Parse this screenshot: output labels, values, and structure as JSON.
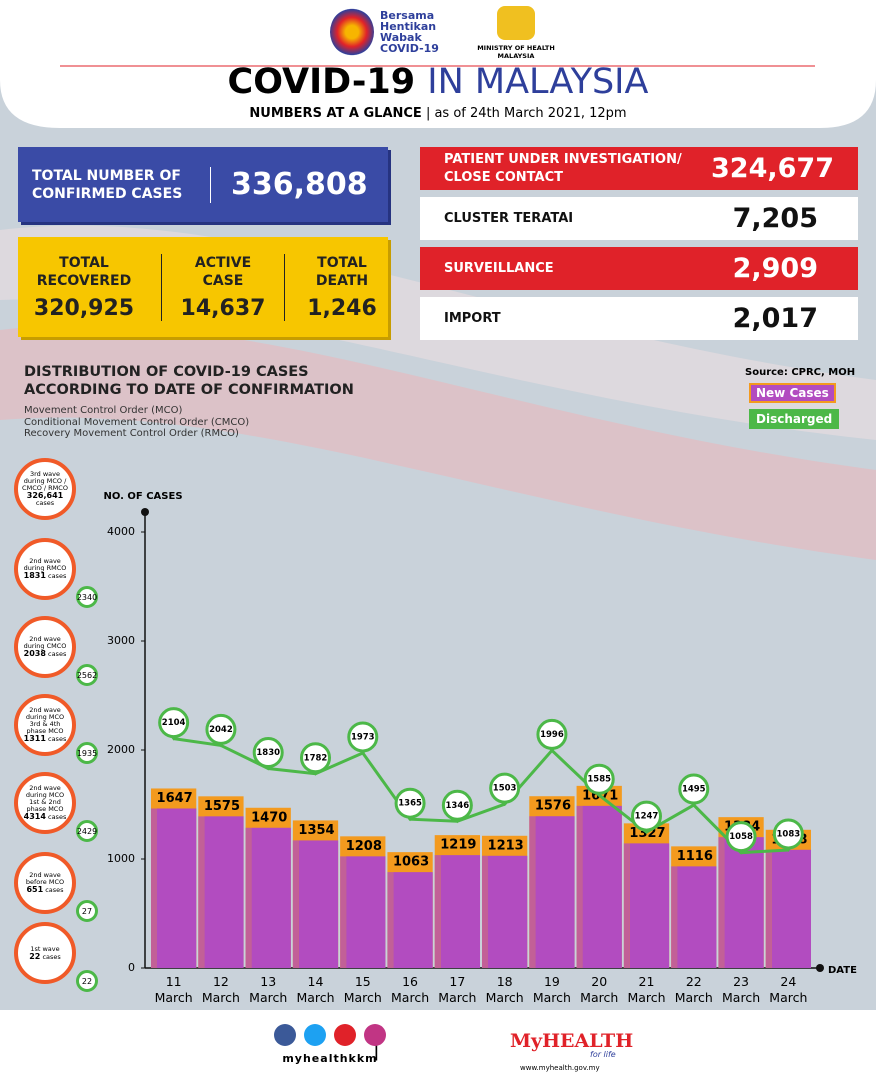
{
  "header": {
    "campaign": [
      "Bersama",
      "Hentikan",
      "Wabak",
      "COVID-19"
    ],
    "ministry": "MINISTRY OF HEALTH MALAYSIA",
    "title_main": "COVID-19",
    "title_rest": "IN MALAYSIA",
    "subtitle": "NUMBERS AT A GLANCE",
    "date": "as of 24th March 2021, 12pm"
  },
  "stats": {
    "confirmed": {
      "label": "TOTAL NUMBER OF CONFIRMED CASES",
      "value": "336,808"
    },
    "recovered": {
      "label": "TOTAL RECOVERED",
      "value": "320,925"
    },
    "active": {
      "label": "ACTIVE CASE",
      "value": "14,637"
    },
    "death": {
      "label": "TOTAL DEATH",
      "value": "1,246"
    },
    "pui": {
      "label": "PATIENT UNDER INVESTIGATION/ CLOSE CONTACT",
      "value": "324,677"
    },
    "cluster": {
      "label": "CLUSTER TERATAI",
      "value": "7,205"
    },
    "surveillance": {
      "label": "SURVEILLANCE",
      "value": "2,909"
    },
    "import": {
      "label": "IMPORT",
      "value": "2,017"
    }
  },
  "chart_data": {
    "type": "bar",
    "title": "DISTRIBUTION OF COVID-19 CASES ACCORDING TO DATE OF CONFIRMATION",
    "notes": [
      "Movement Control Order (MCO)",
      "Conditional Movement Control Order (CMCO)",
      "Recovery Movement Control Order (RMCO)"
    ],
    "source": "Source: CPRC, MOH",
    "y_label": "NO. OF CASES",
    "x_label": "DATE",
    "categories": [
      "11 March",
      "12 March",
      "13 March",
      "14 March",
      "15 March",
      "16 March",
      "17 March",
      "18 March",
      "19 March",
      "20 March",
      "21 March",
      "22 March",
      "23 March",
      "24 March"
    ],
    "series": [
      {
        "name": "New Cases",
        "type": "bar",
        "color": "#f39a1e",
        "inner_color": "#b24cc0",
        "values": [
          1647,
          1575,
          1470,
          1354,
          1208,
          1063,
          1219,
          1213,
          1576,
          1671,
          1327,
          1116,
          1384,
          1268
        ]
      },
      {
        "name": "Discharged",
        "type": "line",
        "color": "#4cb848",
        "values": [
          2104,
          2042,
          1830,
          1782,
          1973,
          1365,
          1346,
          1503,
          1996,
          1585,
          1247,
          1495,
          1058,
          1083
        ]
      }
    ],
    "ylim": [
      0,
      4000
    ],
    "yticks": [
      0,
      1000,
      2000,
      3000,
      4000
    ]
  },
  "waves": [
    {
      "label": "3rd wave during MCO / CMCO / RMCO",
      "cases": "326,641",
      "unit": "cases"
    },
    {
      "label": "2nd wave during RMCO",
      "cases": "1831",
      "unit": "cases",
      "discharged": "2340"
    },
    {
      "label": "2nd wave during CMCO",
      "cases": "2038",
      "unit": "cases",
      "discharged": "2562"
    },
    {
      "label": "2nd wave during MCO 3rd & 4th phase MCO",
      "cases": "1311",
      "unit": "cases",
      "discharged": "1935"
    },
    {
      "label": "2nd wave during MCO 1st & 2nd phase MCO",
      "cases": "4314",
      "unit": "cases",
      "discharged": "2429"
    },
    {
      "label": "2nd wave before MCO",
      "cases": "651",
      "unit": "cases",
      "discharged": "27"
    },
    {
      "label": "1st wave",
      "cases": "22",
      "unit": "cases",
      "discharged": "22"
    }
  ],
  "footer": {
    "handle": "myhealthkkm",
    "brand": "MyHEALTH",
    "tagline": "for life",
    "url": "www.myhealth.gov.my"
  }
}
